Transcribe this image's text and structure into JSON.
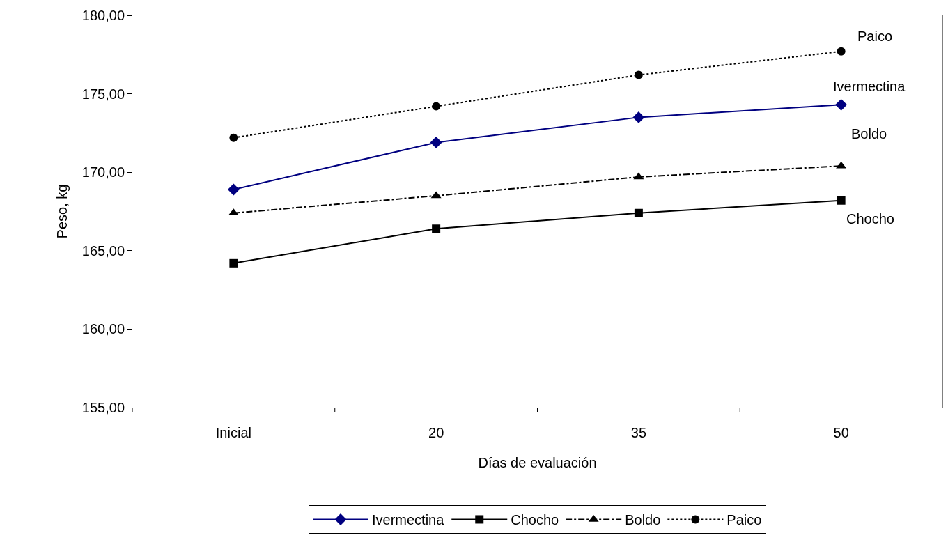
{
  "chart_data": {
    "type": "line",
    "xlabel": "Días de evaluación",
    "ylabel": "Peso, kg",
    "categories": [
      "Inicial",
      "20",
      "35",
      "50"
    ],
    "series": [
      {
        "name": "Ivermectina",
        "color": "#000080",
        "marker": "diamond",
        "line_style": "solid",
        "values": [
          168.9,
          171.9,
          173.5,
          174.3
        ]
      },
      {
        "name": "Chocho",
        "color": "#000000",
        "marker": "square",
        "line_style": "solid",
        "values": [
          164.2,
          166.4,
          167.4,
          168.2
        ]
      },
      {
        "name": "Boldo",
        "color": "#000000",
        "marker": "triangle",
        "line_style": "dashdot",
        "values": [
          167.4,
          168.5,
          169.7,
          170.4
        ]
      },
      {
        "name": "Paico",
        "color": "#000000",
        "marker": "circle",
        "line_style": "dotted",
        "values": [
          172.2,
          174.2,
          176.2,
          177.7
        ]
      }
    ],
    "annotations": [
      {
        "text": "Paico",
        "x": "50",
        "y": 177.7
      },
      {
        "text": "Ivermectina",
        "x": "50",
        "y": 174.3
      },
      {
        "text": "Boldo",
        "x": "50",
        "y": 170.4
      },
      {
        "text": "Chocho",
        "x": "50",
        "y": 168.2
      }
    ],
    "ylim": [
      155,
      180
    ],
    "yticks": [
      {
        "value": 155,
        "label": "155,00"
      },
      {
        "value": 160,
        "label": "160,00"
      },
      {
        "value": 165,
        "label": "165,00"
      },
      {
        "value": 170,
        "label": "170,00"
      },
      {
        "value": 175,
        "label": "175,00"
      },
      {
        "value": 180,
        "label": "180,00"
      }
    ],
    "grid": false,
    "legend": "bottom"
  }
}
